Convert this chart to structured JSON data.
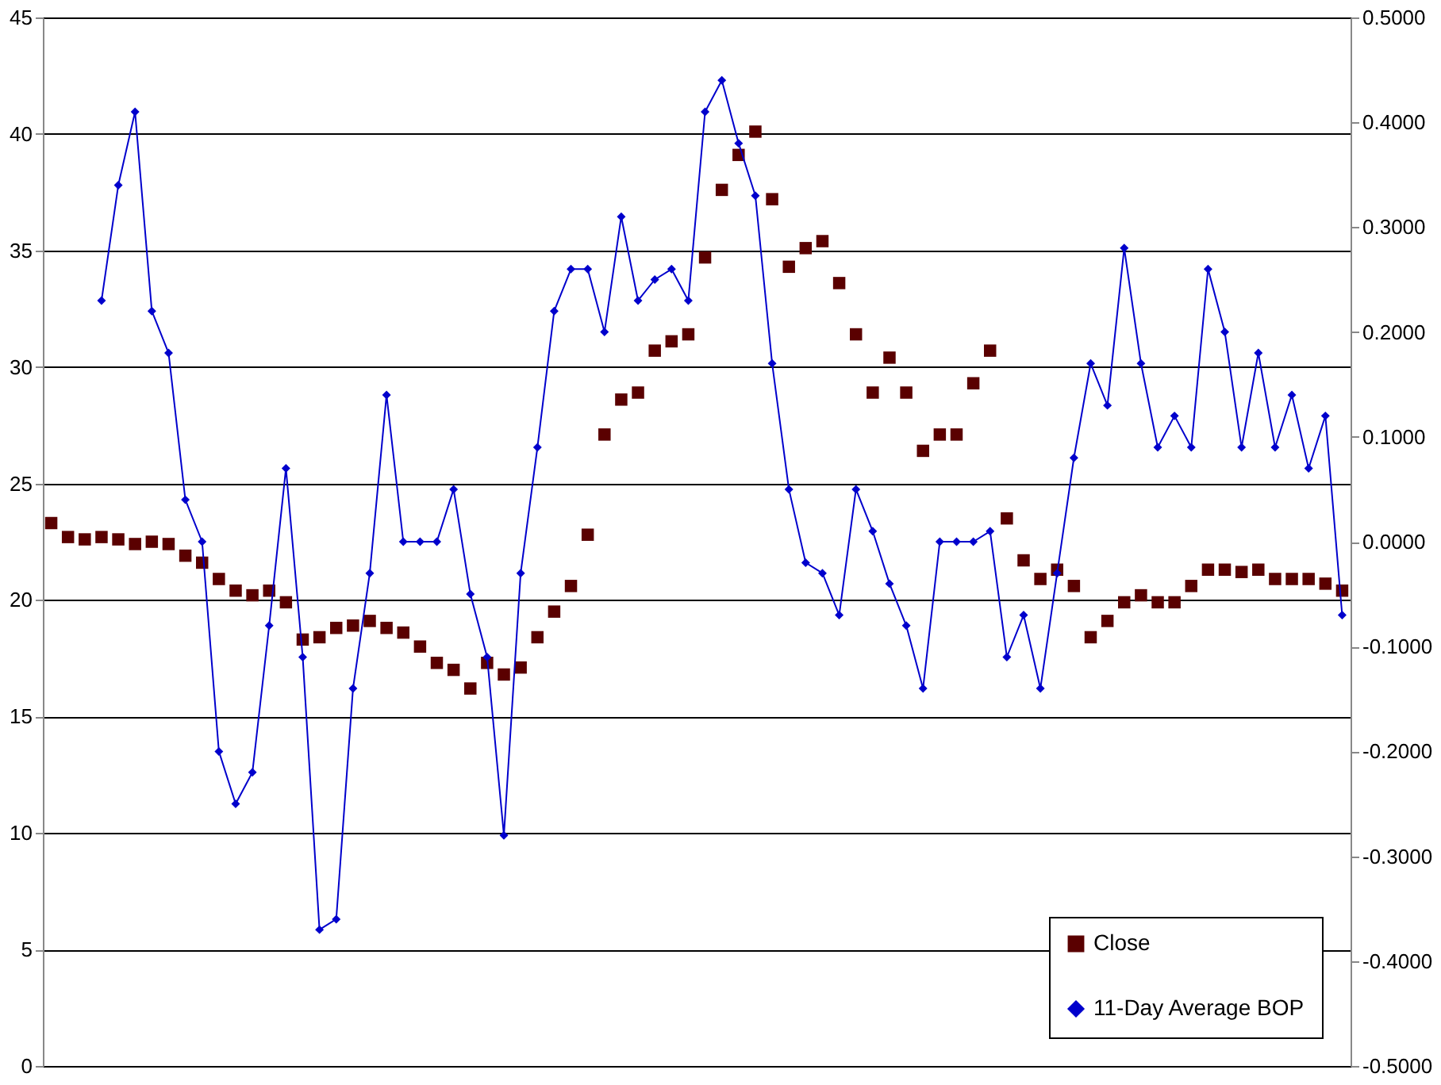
{
  "chart_data": {
    "type": "line",
    "categories": [
      null,
      null,
      null,
      null,
      null,
      null,
      null,
      null,
      null,
      null,
      null,
      null,
      null,
      null,
      null,
      null,
      null,
      null,
      null,
      null,
      null,
      null,
      null,
      null,
      null,
      null,
      null,
      null,
      null,
      null,
      null,
      null,
      null,
      null,
      null,
      null,
      null,
      null,
      null,
      null,
      null,
      null,
      null,
      null,
      null,
      null,
      null,
      null,
      null,
      null,
      null,
      null,
      null,
      null,
      null,
      null,
      null,
      null,
      null,
      null,
      null,
      null,
      null,
      null,
      null,
      null,
      null,
      null,
      null,
      null,
      null,
      null,
      null,
      null,
      null,
      null,
      null,
      null
    ],
    "series": [
      {
        "name": "Close",
        "type": "scatter",
        "marker": "square",
        "color": "#5a0000",
        "values": [
          23.3,
          22.7,
          22.6,
          22.7,
          22.6,
          22.4,
          22.5,
          22.4,
          21.9,
          21.6,
          20.9,
          20.4,
          20.2,
          20.4,
          19.9,
          18.3,
          18.4,
          18.8,
          18.9,
          19.1,
          18.8,
          18.6,
          18.0,
          17.3,
          17.0,
          16.2,
          17.3,
          16.8,
          17.1,
          18.4,
          19.5,
          20.6,
          22.8,
          27.1,
          28.6,
          28.9,
          30.7,
          31.1,
          31.4,
          34.7,
          37.6,
          39.1,
          40.1,
          37.2,
          34.3,
          35.1,
          35.4,
          33.6,
          31.4,
          28.9,
          30.4,
          28.9,
          26.4,
          27.1,
          27.1,
          29.3,
          30.7,
          23.5,
          21.7,
          20.9,
          21.3,
          20.6,
          18.4,
          19.1,
          19.9,
          20.2,
          19.9,
          19.9,
          20.6,
          21.3,
          21.3,
          21.2,
          21.3,
          20.9,
          20.9,
          20.9,
          20.7,
          20.4
        ]
      },
      {
        "name": "11-Day Average BOP",
        "marker": "diamond",
        "axis": "y2",
        "color": "#0000cc",
        "values": [
          null,
          null,
          null,
          0.23,
          0.34,
          0.41,
          0.22,
          0.18,
          0.04,
          0.0,
          -0.2,
          -0.25,
          -0.22,
          -0.08,
          0.07,
          -0.11,
          -0.37,
          -0.36,
          -0.14,
          -0.03,
          0.14,
          0.0,
          0.0,
          0.0,
          0.05,
          -0.05,
          -0.11,
          -0.28,
          -0.03,
          0.09,
          0.22,
          0.26,
          0.26,
          0.2,
          0.31,
          0.23,
          0.25,
          0.26,
          0.23,
          0.41,
          0.44,
          0.38,
          0.33,
          0.17,
          0.05,
          -0.02,
          -0.03,
          -0.07,
          0.05,
          0.01,
          -0.04,
          -0.08,
          -0.14,
          0.0,
          0.0,
          0.0,
          0.01,
          -0.11,
          -0.07,
          -0.14,
          -0.03,
          0.08,
          0.17,
          0.13,
          0.28,
          0.17,
          0.09,
          0.12,
          0.09,
          0.26,
          0.2,
          0.09,
          0.18,
          0.09,
          0.14,
          0.07,
          0.12,
          -0.07
        ]
      }
    ],
    "ylim": [
      0,
      45
    ],
    "yticks": [
      0,
      5,
      10,
      15,
      20,
      25,
      30,
      35,
      40,
      45
    ],
    "y2lim": [
      -0.5,
      0.5
    ],
    "y2ticks": [
      {
        "value": -0.5,
        "label": "-0.5000"
      },
      {
        "value": -0.4,
        "label": "-0.4000"
      },
      {
        "value": -0.3,
        "label": "-0.3000"
      },
      {
        "value": -0.2,
        "label": "-0.2000"
      },
      {
        "value": -0.1,
        "label": "-0.1000"
      },
      {
        "value": 0,
        "label": "0.0000"
      },
      {
        "value": 0.1,
        "label": "0.1000"
      },
      {
        "value": 0.2,
        "label": "0.2000"
      },
      {
        "value": 0.3,
        "label": "0.3000"
      },
      {
        "value": 0.4,
        "label": "0.4000"
      },
      {
        "value": 0.5,
        "label": "0.5000"
      }
    ],
    "grid": "y",
    "legend": "bottom right"
  }
}
